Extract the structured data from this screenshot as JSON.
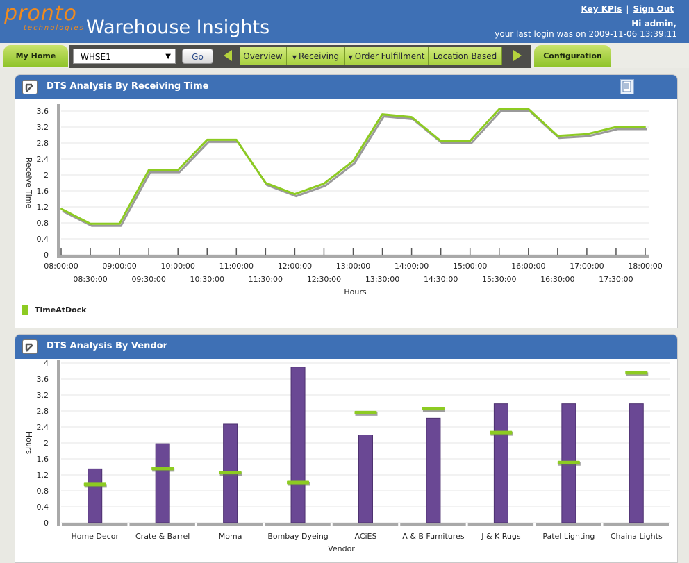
{
  "header": {
    "logo_main": "pronto",
    "logo_sub": "technologies",
    "app_title": "Warehouse Insights",
    "link_kpis": "Key KPIs",
    "link_sep": "|",
    "link_signout": "Sign Out",
    "greeting": "Hi admin,",
    "last_login": "your last login was on 2009-11-06 13:39:11"
  },
  "nav": {
    "home_tab": "My Home",
    "warehouse_select": "WHSE1",
    "go": "Go",
    "menu": [
      "Overview",
      "Receiving",
      "Order Fulfillment",
      "Location Based"
    ],
    "config_tab": "Configuration"
  },
  "colors": {
    "header_blue": "#3e70b5",
    "line_green": "#8dcb22",
    "bar_purple": "#6a4894",
    "logo_orange": "#f08a1e"
  },
  "panel1": {
    "title": "DTS Analysis By  Receiving Time"
  },
  "panel2": {
    "title": "DTS Analysis By Vendor"
  },
  "chart_data": [
    {
      "type": "line",
      "title": "DTS Analysis By  Receiving Time",
      "xlabel": "Hours",
      "ylabel": "Receive Time",
      "ylim": [
        0,
        3.6
      ],
      "yticks": [
        "0",
        "0.4",
        "0.8",
        "1.2",
        "1.6",
        "2",
        "2.4",
        "2.8",
        "3.2",
        "3.6"
      ],
      "x": [
        "08:00:00",
        "08:30:00",
        "09:00:00",
        "09:30:00",
        "10:00:00",
        "10:30:00",
        "11:00:00",
        "11:30:00",
        "12:00:00",
        "12:30:00",
        "13:00:00",
        "13:30:00",
        "14:00:00",
        "14:30:00",
        "15:00:00",
        "15:30:00",
        "16:00:00",
        "16:30:00",
        "17:00:00",
        "17:30:00",
        "18:00:00"
      ],
      "series": [
        {
          "name": "TimeAtDock",
          "values": [
            1.15,
            0.78,
            0.78,
            2.12,
            2.12,
            2.88,
            2.88,
            1.8,
            1.52,
            1.78,
            2.35,
            3.52,
            3.45,
            2.85,
            2.85,
            3.65,
            3.65,
            2.98,
            3.02,
            3.2,
            3.2
          ]
        }
      ],
      "legend": "bottom-left",
      "grid": true
    },
    {
      "type": "bar",
      "title": "DTS Analysis By Vendor",
      "xlabel": "Vendor",
      "ylabel": "Hours",
      "ylim": [
        0,
        4
      ],
      "yticks": [
        "0",
        "0.4",
        "0.8",
        "1.2",
        "1.6",
        "2",
        "2.4",
        "2.8",
        "3.2",
        "3.6",
        "4"
      ],
      "categories": [
        "Home Decor",
        "Crate & Barrel",
        "Moma",
        "Bombay Dyeing",
        "ACiES",
        "A & B Furnitures",
        "J & K Rugs",
        "Patel Lighting",
        "Chaina Lights"
      ],
      "series": [
        {
          "values": [
            1.35,
            1.98,
            2.47,
            3.9,
            2.2,
            2.62,
            2.98,
            2.98,
            2.98
          ]
        },
        {
          "values": [
            0.95,
            1.35,
            1.25,
            1.0,
            2.75,
            2.85,
            2.25,
            1.5,
            3.75
          ]
        }
      ],
      "grid": true
    }
  ]
}
